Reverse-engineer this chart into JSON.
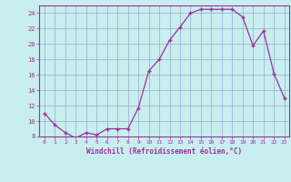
{
  "x": [
    0,
    1,
    2,
    3,
    4,
    5,
    6,
    7,
    8,
    9,
    10,
    11,
    12,
    13,
    14,
    15,
    16,
    17,
    18,
    19,
    20,
    21,
    22,
    23
  ],
  "y": [
    11.0,
    9.5,
    8.5,
    7.8,
    8.5,
    8.2,
    9.0,
    9.0,
    9.0,
    11.7,
    16.5,
    18.0,
    20.5,
    22.2,
    24.0,
    24.5,
    24.5,
    24.5,
    24.5,
    23.5,
    19.8,
    21.7,
    16.2,
    13.0
  ],
  "line_color": "#993399",
  "marker": "+",
  "bg_color": "#c8eef0",
  "grid_color": "#99aacc",
  "xlabel": "Windchill (Refroidissement éolien,°C)",
  "ylim": [
    8,
    25
  ],
  "xlim": [
    -0.5,
    23.5
  ],
  "yticks": [
    8,
    10,
    12,
    14,
    16,
    18,
    20,
    22,
    24
  ],
  "xticks": [
    0,
    1,
    2,
    3,
    4,
    5,
    6,
    7,
    8,
    9,
    10,
    11,
    12,
    13,
    14,
    15,
    16,
    17,
    18,
    19,
    20,
    21,
    22,
    23
  ],
  "xlabel_color": "#993399",
  "tick_color": "#993399",
  "axis_color": "#993399",
  "spine_color": "#993399"
}
